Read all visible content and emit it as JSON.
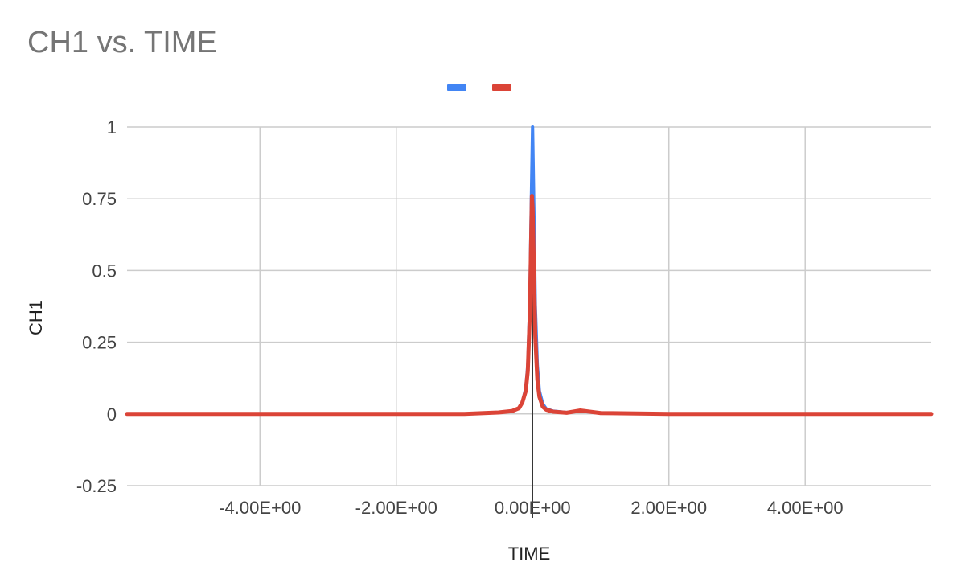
{
  "chart_data": {
    "type": "line",
    "title": "CH1 vs. TIME",
    "xlabel": "TIME",
    "ylabel": "CH1",
    "xlim": [
      -5.95,
      5.85
    ],
    "ylim": [
      -0.25,
      1
    ],
    "x_ticks": [
      -4,
      -2,
      0,
      2,
      4
    ],
    "x_tick_labels": [
      "-4.00E+00",
      "-2.00E+00",
      "0.00E+00",
      "2.00E+00",
      "4.00E+00"
    ],
    "y_ticks": [
      1,
      0.75,
      0.5,
      0.25,
      0,
      -0.25
    ],
    "y_tick_labels": [
      "1",
      "0.75",
      "0.5",
      "0.25",
      "0",
      "-0.25"
    ],
    "grid": true,
    "legend": "top-center",
    "series": [
      {
        "color": "#4285f4",
        "x": [
          -5.95,
          -4.0,
          -2.0,
          -1.0,
          -0.5,
          -0.3,
          -0.2,
          -0.15,
          -0.1,
          -0.07,
          -0.04,
          -0.02,
          0.0,
          0.02,
          0.04,
          0.07,
          0.1,
          0.15,
          0.2,
          0.3,
          0.5,
          0.7,
          1.0,
          2.0,
          4.0,
          5.85
        ],
        "y": [
          0.0,
          0.0,
          0.0,
          0.0,
          0.005,
          0.01,
          0.02,
          0.04,
          0.09,
          0.17,
          0.4,
          0.72,
          1.0,
          0.7,
          0.38,
          0.17,
          0.08,
          0.035,
          0.018,
          0.01,
          0.005,
          0.01,
          0.003,
          0.0,
          0.0,
          0.0
        ]
      },
      {
        "color": "#db4437",
        "x": [
          -5.95,
          -4.0,
          -2.0,
          -1.0,
          -0.5,
          -0.3,
          -0.2,
          -0.15,
          -0.1,
          -0.07,
          -0.04,
          -0.02,
          -0.01,
          0.0,
          0.02,
          0.04,
          0.07,
          0.1,
          0.15,
          0.2,
          0.3,
          0.5,
          0.7,
          1.0,
          2.0,
          4.0,
          5.85
        ],
        "y": [
          0.0,
          0.0,
          0.0,
          0.0,
          0.005,
          0.01,
          0.02,
          0.04,
          0.08,
          0.15,
          0.35,
          0.62,
          0.76,
          0.72,
          0.5,
          0.27,
          0.12,
          0.06,
          0.025,
          0.015,
          0.008,
          0.004,
          0.012,
          0.003,
          0.0,
          0.0,
          0.0
        ]
      }
    ]
  }
}
